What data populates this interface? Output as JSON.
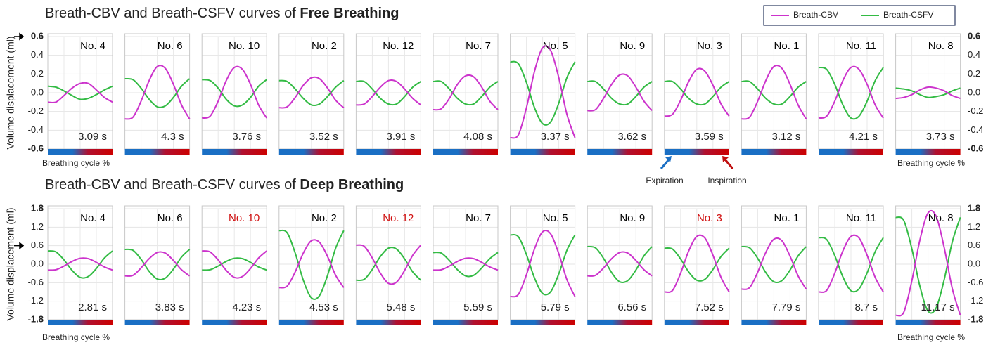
{
  "legend": [
    {
      "name": "Breath-CBV",
      "color": "#cc33cc"
    },
    {
      "name": "Breath-CSFV",
      "color": "#33bb44"
    }
  ],
  "annotations": {
    "expiration": "Expiration",
    "inspiration": "Inspiration"
  },
  "chart_data": [
    {
      "type": "line",
      "title": "Breath-CBV and Breath-CSFV curves of ",
      "title_bold": "Free Breathing",
      "y_label": "Volume displacement (ml)",
      "x_label": "Breathing cycle %",
      "ylim": [
        -0.6,
        0.6
      ],
      "yticks": [
        -0.6,
        -0.4,
        -0.2,
        {
          "value": 0,
          "label": "0.0"
        },
        0.2,
        0.4,
        0.6
      ],
      "marked_tick": 0.6,
      "grid": true,
      "x": [
        0,
        12.5,
        25,
        37.5,
        50,
        62.5,
        75,
        87.5,
        100
      ],
      "panels": [
        {
          "label": "No. 4",
          "label_color": "#000000",
          "duration": "3.09 s",
          "cbv": [
            -0.1,
            -0.1,
            -0.03,
            0.05,
            0.1,
            0.1,
            0.03,
            -0.05,
            -0.1
          ],
          "csfv": [
            0.07,
            0.06,
            0.02,
            -0.03,
            -0.07,
            -0.06,
            -0.02,
            0.03,
            0.07
          ]
        },
        {
          "label": "No. 6",
          "label_color": "#000000",
          "duration": "4.3 s",
          "cbv": [
            -0.28,
            -0.26,
            -0.09,
            0.13,
            0.28,
            0.26,
            0.09,
            -0.13,
            -0.28
          ],
          "csfv": [
            0.15,
            0.14,
            0.05,
            -0.07,
            -0.15,
            -0.14,
            -0.05,
            0.07,
            0.15
          ]
        },
        {
          "label": "No. 10",
          "label_color": "#000000",
          "duration": "3.76 s",
          "cbv": [
            -0.27,
            -0.25,
            -0.09,
            0.13,
            0.27,
            0.25,
            0.09,
            -0.13,
            -0.27
          ],
          "csfv": [
            0.14,
            0.13,
            0.05,
            -0.07,
            -0.14,
            -0.13,
            -0.05,
            0.07,
            0.14
          ]
        },
        {
          "label": "No. 2",
          "label_color": "#000000",
          "duration": "3.52 s",
          "cbv": [
            -0.16,
            -0.15,
            -0.05,
            0.08,
            0.16,
            0.15,
            0.05,
            -0.08,
            -0.16
          ],
          "csfv": [
            0.13,
            0.12,
            0.04,
            -0.06,
            -0.13,
            -0.12,
            -0.04,
            0.06,
            0.13
          ]
        },
        {
          "label": "No. 12",
          "label_color": "#000000",
          "duration": "3.91 s",
          "cbv": [
            -0.13,
            -0.12,
            -0.04,
            0.06,
            0.13,
            0.12,
            0.04,
            -0.06,
            -0.13
          ],
          "csfv": [
            0.12,
            0.12,
            0.04,
            -0.06,
            -0.12,
            -0.12,
            -0.04,
            0.06,
            0.12
          ]
        },
        {
          "label": "No. 7",
          "label_color": "#000000",
          "duration": "4.08 s",
          "cbv": [
            -0.18,
            -0.17,
            -0.06,
            0.09,
            0.18,
            0.17,
            0.06,
            -0.09,
            -0.18
          ],
          "csfv": [
            0.12,
            0.12,
            0.04,
            -0.06,
            -0.12,
            -0.12,
            -0.04,
            0.06,
            0.12
          ]
        },
        {
          "label": "No. 5",
          "label_color": "#000000",
          "duration": "3.37 s",
          "cbv": [
            -0.48,
            -0.45,
            -0.16,
            0.23,
            0.48,
            0.45,
            0.16,
            -0.23,
            -0.48
          ],
          "csfv": [
            0.33,
            0.31,
            0.11,
            -0.16,
            -0.33,
            -0.31,
            -0.11,
            0.16,
            0.33
          ]
        },
        {
          "label": "No. 9",
          "label_color": "#000000",
          "duration": "3.62 s",
          "cbv": [
            -0.19,
            -0.18,
            -0.06,
            0.09,
            0.19,
            0.18,
            0.06,
            -0.09,
            -0.19
          ],
          "csfv": [
            0.12,
            0.12,
            0.04,
            -0.06,
            -0.12,
            -0.12,
            -0.04,
            0.06,
            0.12
          ]
        },
        {
          "label": "No. 3",
          "label_color": "#000000",
          "duration": "3.59 s",
          "cbv": [
            -0.25,
            -0.23,
            -0.08,
            0.12,
            0.25,
            0.23,
            0.08,
            -0.12,
            -0.25
          ],
          "csfv": [
            0.12,
            0.12,
            0.04,
            -0.06,
            -0.12,
            -0.12,
            -0.04,
            0.06,
            0.12
          ]
        },
        {
          "label": "No. 1",
          "label_color": "#000000",
          "duration": "3.12 s",
          "cbv": [
            -0.28,
            -0.26,
            -0.09,
            0.13,
            0.28,
            0.26,
            0.09,
            -0.13,
            -0.28
          ],
          "csfv": [
            0.12,
            0.12,
            0.04,
            -0.06,
            -0.12,
            -0.12,
            -0.04,
            0.06,
            0.12
          ]
        },
        {
          "label": "No. 11",
          "label_color": "#000000",
          "duration": "4.21 s",
          "cbv": [
            -0.27,
            -0.25,
            -0.09,
            0.13,
            0.27,
            0.25,
            0.09,
            -0.13,
            -0.27
          ],
          "csfv": [
            0.27,
            0.25,
            0.09,
            -0.13,
            -0.27,
            -0.25,
            -0.09,
            0.13,
            0.27
          ]
        },
        {
          "label": "No. 8",
          "label_color": "#000000",
          "duration": "3.73 s",
          "cbv": [
            -0.06,
            -0.05,
            -0.02,
            0.03,
            0.06,
            0.05,
            0.02,
            -0.03,
            -0.06
          ],
          "csfv": [
            0.05,
            0.04,
            0.02,
            -0.02,
            -0.05,
            -0.04,
            -0.02,
            0.02,
            0.05
          ]
        }
      ]
    },
    {
      "type": "line",
      "title": "Breath-CBV and Breath-CSFV curves of ",
      "title_bold": "Deep Breathing",
      "y_label": "Volume displacement (ml)",
      "x_label": "Breathing cycle %",
      "ylim": [
        -1.8,
        1.8
      ],
      "yticks": [
        -1.8,
        -1.2,
        -0.6,
        {
          "value": 0,
          "label": "0.0"
        },
        0.6,
        1.2,
        1.8
      ],
      "marked_tick": 0.6,
      "grid": true,
      "x": [
        0,
        12.5,
        25,
        37.5,
        50,
        62.5,
        75,
        87.5,
        100
      ],
      "panels": [
        {
          "label": "No. 4",
          "label_color": "#000000",
          "duration": "2.81 s",
          "cbv": [
            -0.19,
            -0.18,
            -0.06,
            0.09,
            0.19,
            0.18,
            0.06,
            -0.09,
            -0.19
          ],
          "csfv": [
            0.43,
            0.4,
            0.14,
            -0.2,
            -0.43,
            -0.4,
            -0.14,
            0.2,
            0.43
          ]
        },
        {
          "label": "No. 6",
          "label_color": "#000000",
          "duration": "3.83 s",
          "cbv": [
            -0.38,
            -0.36,
            -0.12,
            0.18,
            0.38,
            0.36,
            0.12,
            -0.18,
            -0.38
          ],
          "csfv": [
            0.48,
            0.45,
            0.16,
            -0.23,
            -0.48,
            -0.45,
            -0.16,
            0.23,
            0.48
          ]
        },
        {
          "label": "No. 10",
          "label_color": "#d01010",
          "duration": "4.23 s",
          "cbv": [
            0.43,
            0.4,
            0.14,
            -0.2,
            -0.43,
            -0.4,
            -0.14,
            0.2,
            0.43
          ],
          "csfv": [
            -0.19,
            -0.18,
            -0.06,
            0.09,
            0.19,
            0.18,
            0.06,
            -0.09,
            -0.19
          ]
        },
        {
          "label": "No. 2",
          "label_color": "#000000",
          "duration": "4.53 s",
          "cbv": [
            -0.76,
            -0.71,
            -0.25,
            0.36,
            0.76,
            0.71,
            0.25,
            -0.36,
            -0.76
          ],
          "csfv": [
            1.09,
            1.02,
            0.36,
            -0.52,
            -1.09,
            -1.02,
            -0.36,
            0.52,
            1.09
          ]
        },
        {
          "label": "No. 12",
          "label_color": "#d01010",
          "duration": "5.48 s",
          "cbv": [
            0.62,
            0.58,
            0.2,
            -0.29,
            -0.62,
            -0.58,
            -0.2,
            0.29,
            0.62
          ],
          "csfv": [
            -0.52,
            -0.49,
            -0.17,
            0.25,
            0.52,
            0.49,
            0.17,
            -0.25,
            -0.52
          ]
        },
        {
          "label": "No. 7",
          "label_color": "#000000",
          "duration": "5.59 s",
          "cbv": [
            -0.19,
            -0.18,
            -0.06,
            0.09,
            0.19,
            0.18,
            0.06,
            -0.09,
            -0.19
          ],
          "csfv": [
            0.38,
            0.36,
            0.12,
            -0.18,
            -0.38,
            -0.36,
            -0.12,
            0.18,
            0.38
          ]
        },
        {
          "label": "No. 5",
          "label_color": "#000000",
          "duration": "5.79 s",
          "cbv": [
            -1.05,
            -0.98,
            -0.34,
            0.5,
            1.05,
            0.98,
            0.34,
            -0.5,
            -1.05
          ],
          "csfv": [
            0.95,
            0.89,
            0.31,
            -0.45,
            -0.95,
            -0.89,
            -0.31,
            0.45,
            0.95
          ]
        },
        {
          "label": "No. 9",
          "label_color": "#000000",
          "duration": "6.56 s",
          "cbv": [
            -0.38,
            -0.36,
            -0.12,
            0.18,
            0.38,
            0.36,
            0.12,
            -0.18,
            -0.38
          ],
          "csfv": [
            0.57,
            0.53,
            0.19,
            -0.27,
            -0.57,
            -0.53,
            -0.19,
            0.27,
            0.57
          ]
        },
        {
          "label": "No. 3",
          "label_color": "#d01010",
          "duration": "7.52 s",
          "cbv": [
            -0.9,
            -0.85,
            -0.29,
            0.43,
            0.9,
            0.85,
            0.29,
            -0.43,
            -0.9
          ],
          "csfv": [
            0.52,
            0.49,
            0.17,
            -0.25,
            -0.52,
            -0.49,
            -0.17,
            0.25,
            0.52
          ]
        },
        {
          "label": "No. 1",
          "label_color": "#000000",
          "duration": "7.79 s",
          "cbv": [
            -0.81,
            -0.76,
            -0.26,
            0.38,
            0.81,
            0.76,
            0.26,
            -0.38,
            -0.81
          ],
          "csfv": [
            0.57,
            0.53,
            0.19,
            -0.27,
            -0.57,
            -0.53,
            -0.19,
            0.27,
            0.57
          ]
        },
        {
          "label": "No. 11",
          "label_color": "#000000",
          "duration": "8.7 s",
          "cbv": [
            -0.9,
            -0.85,
            -0.29,
            0.43,
            0.9,
            0.85,
            0.29,
            -0.43,
            -0.9
          ],
          "csfv": [
            0.86,
            0.8,
            0.28,
            -0.41,
            -0.86,
            -0.8,
            -0.28,
            0.41,
            0.86
          ]
        },
        {
          "label": "No. 8",
          "label_color": "#000000",
          "duration": "11.17 s",
          "cbv": [
            -1.66,
            -1.56,
            -0.54,
            0.79,
            1.66,
            1.56,
            0.54,
            -0.79,
            -1.66
          ],
          "csfv": [
            1.52,
            1.42,
            0.5,
            -0.72,
            -1.52,
            -1.42,
            -0.5,
            0.72,
            1.52
          ]
        }
      ]
    }
  ]
}
